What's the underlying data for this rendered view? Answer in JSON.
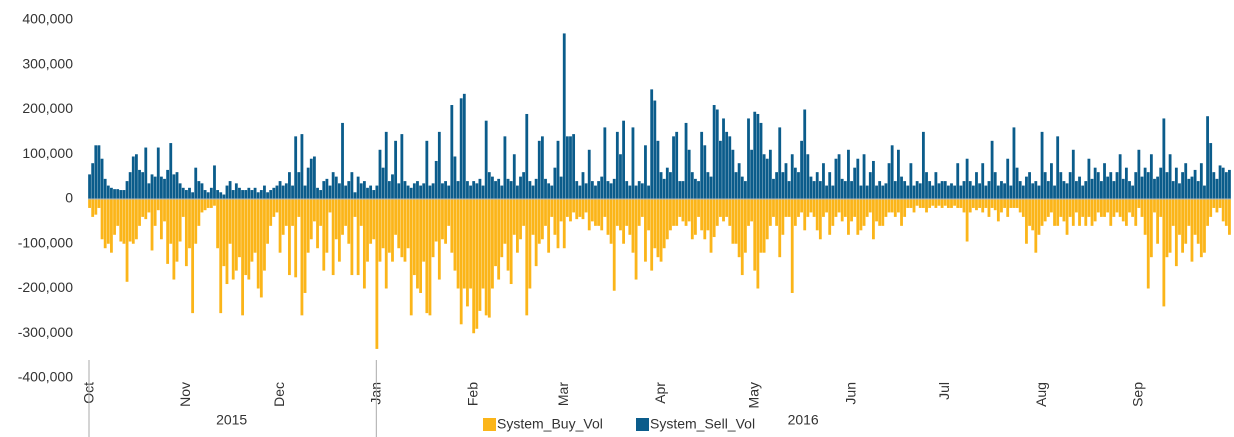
{
  "chart_data": {
    "type": "bar",
    "series": [
      {
        "name": "System_Buy_Vol",
        "color": "#fbb519",
        "values": [
          -20000,
          -40000,
          -35000,
          -20000,
          -90000,
          -110000,
          -100000,
          -120000,
          -80000,
          -60000,
          -95000,
          -100000,
          -185000,
          -95000,
          -100000,
          -90000,
          -60000,
          -40000,
          -45000,
          -30000,
          -115000,
          -60000,
          -25000,
          -90000,
          -50000,
          -145000,
          -100000,
          -180000,
          -140000,
          -95000,
          -40000,
          -150000,
          -110000,
          -255000,
          -100000,
          -60000,
          -30000,
          -25000,
          -20000,
          -20000,
          -15000,
          -110000,
          -255000,
          -150000,
          -190000,
          -100000,
          -180000,
          -160000,
          -130000,
          -260000,
          -170000,
          -180000,
          -140000,
          -120000,
          -200000,
          -220000,
          -160000,
          -100000,
          -60000,
          -40000,
          -30000,
          -120000,
          -80000,
          -60000,
          -170000,
          -60000,
          -175000,
          -40000,
          -260000,
          -210000,
          -120000,
          -90000,
          -50000,
          -110000,
          -60000,
          -160000,
          -120000,
          -30000,
          -170000,
          -90000,
          -140000,
          -80000,
          -60000,
          -100000,
          -170000,
          -40000,
          -170000,
          -60000,
          -200000,
          -140000,
          -100000,
          -90000,
          -335000,
          -140000,
          -110000,
          -200000,
          -120000,
          -140000,
          -80000,
          -110000,
          -130000,
          -140000,
          -110000,
          -260000,
          -170000,
          -200000,
          -210000,
          -140000,
          -255000,
          -260000,
          -130000,
          -95000,
          -180000,
          -90000,
          -100000,
          -60000,
          -120000,
          -160000,
          -200000,
          -280000,
          -200000,
          -240000,
          -200000,
          -300000,
          -290000,
          -250000,
          -200000,
          -260000,
          -265000,
          -200000,
          -150000,
          -180000,
          -130000,
          -100000,
          -160000,
          -190000,
          -80000,
          -120000,
          -90000,
          -60000,
          -260000,
          -200000,
          -80000,
          -150000,
          -100000,
          -90000,
          -60000,
          -120000,
          -40000,
          -80000,
          -110000,
          -50000,
          -110000,
          -40000,
          -50000,
          -30000,
          -45000,
          -40000,
          -45000,
          -30000,
          -70000,
          -50000,
          -60000,
          -60000,
          -70000,
          -40000,
          -80000,
          -100000,
          -205000,
          -60000,
          -70000,
          -100000,
          -60000,
          -80000,
          -120000,
          -180000,
          -60000,
          -40000,
          -140000,
          -70000,
          -160000,
          -110000,
          -130000,
          -140000,
          -110000,
          -90000,
          -70000,
          -60000,
          -60000,
          -40000,
          -50000,
          -60000,
          -50000,
          -90000,
          -80000,
          -40000,
          -70000,
          -90000,
          -70000,
          -120000,
          -85000,
          -60000,
          -40000,
          -50000,
          -40000,
          -60000,
          -100000,
          -100000,
          -130000,
          -170000,
          -120000,
          -60000,
          -50000,
          -160000,
          -200000,
          -120000,
          -120000,
          -90000,
          -60000,
          -40000,
          -60000,
          -130000,
          -80000,
          -40000,
          -40000,
          -210000,
          -60000,
          -40000,
          -30000,
          -70000,
          -40000,
          -30000,
          -40000,
          -70000,
          -90000,
          -40000,
          -30000,
          -80000,
          -60000,
          -40000,
          -30000,
          -50000,
          -40000,
          -80000,
          -50000,
          -40000,
          -80000,
          -70000,
          -60000,
          -40000,
          -30000,
          -90000,
          -50000,
          -60000,
          -60000,
          -40000,
          -30000,
          -30000,
          -40000,
          -30000,
          -60000,
          -40000,
          -20000,
          -20000,
          -30000,
          -15000,
          -20000,
          -20000,
          -30000,
          -20000,
          -15000,
          -20000,
          -15000,
          -20000,
          -15000,
          -20000,
          -20000,
          -15000,
          -20000,
          -20000,
          -30000,
          -95000,
          -30000,
          -20000,
          -25000,
          -20000,
          -30000,
          -20000,
          -40000,
          -20000,
          -25000,
          -50000,
          -30000,
          -20000,
          -40000,
          -20000,
          -20000,
          -20000,
          -30000,
          -40000,
          -100000,
          -60000,
          -70000,
          -120000,
          -80000,
          -60000,
          -50000,
          -40000,
          -30000,
          -60000,
          -60000,
          -40000,
          -50000,
          -80000,
          -40000,
          -60000,
          -30000,
          -60000,
          -40000,
          -60000,
          -40000,
          -60000,
          -50000,
          -30000,
          -40000,
          -40000,
          -30000,
          -60000,
          -40000,
          -30000,
          -40000,
          -50000,
          -60000,
          -30000,
          -40000,
          -60000,
          -20000,
          -40000,
          -80000,
          -200000,
          -130000,
          -30000,
          -100000,
          -40000,
          -240000,
          -130000,
          -120000,
          -60000,
          -150000,
          -80000,
          -120000,
          -100000,
          -60000,
          -140000,
          -80000,
          -100000,
          -130000,
          -120000,
          -60000,
          -40000,
          -20000,
          -30000,
          -20000,
          -50000,
          -60000,
          -80000
        ]
      },
      {
        "name": "System_Sell_Vol",
        "color": "#0b5c8b",
        "values": [
          55000,
          80000,
          120000,
          120000,
          90000,
          45000,
          30000,
          25000,
          22000,
          22000,
          20000,
          20000,
          40000,
          60000,
          95000,
          100000,
          65000,
          60000,
          115000,
          35000,
          55000,
          50000,
          115000,
          50000,
          45000,
          65000,
          125000,
          55000,
          60000,
          35000,
          25000,
          20000,
          25000,
          15000,
          70000,
          40000,
          35000,
          20000,
          15000,
          25000,
          75000,
          20000,
          15000,
          10000,
          30000,
          40000,
          20000,
          35000,
          25000,
          20000,
          20000,
          25000,
          20000,
          25000,
          15000,
          20000,
          30000,
          15000,
          20000,
          25000,
          30000,
          40000,
          30000,
          35000,
          60000,
          30000,
          140000,
          60000,
          145000,
          30000,
          70000,
          90000,
          95000,
          25000,
          20000,
          40000,
          45000,
          30000,
          60000,
          50000,
          35000,
          170000,
          30000,
          40000,
          60000,
          15000,
          50000,
          35000,
          40000,
          25000,
          30000,
          20000,
          30000,
          110000,
          70000,
          150000,
          40000,
          55000,
          130000,
          35000,
          145000,
          40000,
          30000,
          25000,
          35000,
          40000,
          30000,
          35000,
          130000,
          30000,
          35000,
          85000,
          150000,
          35000,
          40000,
          30000,
          210000,
          95000,
          40000,
          225000,
          235000,
          40000,
          30000,
          40000,
          35000,
          45000,
          30000,
          175000,
          60000,
          50000,
          40000,
          45000,
          30000,
          140000,
          45000,
          40000,
          100000,
          30000,
          50000,
          60000,
          190000,
          40000,
          30000,
          45000,
          130000,
          140000,
          45000,
          35000,
          30000,
          70000,
          130000,
          50000,
          370000,
          140000,
          140000,
          145000,
          40000,
          30000,
          60000,
          35000,
          110000,
          40000,
          30000,
          40000,
          50000,
          160000,
          40000,
          35000,
          45000,
          150000,
          100000,
          175000,
          40000,
          30000,
          160000,
          30000,
          40000,
          35000,
          120000,
          30000,
          245000,
          220000,
          130000,
          60000,
          45000,
          70000,
          60000,
          140000,
          150000,
          40000,
          40000,
          170000,
          110000,
          60000,
          45000,
          40000,
          150000,
          120000,
          60000,
          50000,
          210000,
          200000,
          130000,
          180000,
          150000,
          140000,
          110000,
          60000,
          80000,
          50000,
          40000,
          180000,
          110000,
          195000,
          190000,
          170000,
          100000,
          90000,
          110000,
          45000,
          60000,
          160000,
          60000,
          80000,
          40000,
          100000,
          70000,
          60000,
          130000,
          200000,
          100000,
          50000,
          40000,
          60000,
          40000,
          80000,
          30000,
          60000,
          30000,
          90000,
          100000,
          45000,
          40000,
          110000,
          40000,
          70000,
          90000,
          30000,
          100000,
          30000,
          60000,
          85000,
          30000,
          40000,
          30000,
          35000,
          80000,
          120000,
          40000,
          110000,
          50000,
          40000,
          30000,
          80000,
          30000,
          40000,
          35000,
          150000,
          60000,
          40000,
          30000,
          60000,
          35000,
          40000,
          40000,
          30000,
          35000,
          30000,
          80000,
          30000,
          40000,
          90000,
          40000,
          30000,
          60000,
          35000,
          80000,
          30000,
          40000,
          130000,
          60000,
          30000,
          40000,
          35000,
          90000,
          30000,
          160000,
          70000,
          40000,
          30000,
          50000,
          60000,
          35000,
          40000,
          30000,
          150000,
          60000,
          40000,
          80000,
          30000,
          140000,
          60000,
          40000,
          35000,
          60000,
          110000,
          40000,
          50000,
          30000,
          40000,
          90000,
          45000,
          70000,
          60000,
          40000,
          80000,
          50000,
          60000,
          40000,
          60000,
          100000,
          45000,
          70000,
          40000,
          30000,
          60000,
          110000,
          50000,
          70000,
          60000,
          100000,
          45000,
          50000,
          70000,
          180000,
          60000,
          100000,
          40000,
          70000,
          35000,
          60000,
          80000,
          45000,
          50000,
          65000,
          40000,
          80000,
          30000,
          185000,
          125000,
          60000,
          45000,
          75000,
          70000,
          60000,
          65000
        ]
      }
    ],
    "categories": [
      "Oct",
      null,
      null,
      null,
      null,
      null,
      null,
      null,
      null,
      null,
      null,
      null,
      null,
      null,
      null,
      null,
      null,
      null,
      null,
      null,
      null,
      null,
      null,
      null,
      null,
      null,
      null,
      null,
      null,
      null,
      null,
      "Nov",
      null,
      null,
      null,
      null,
      null,
      null,
      null,
      null,
      null,
      null,
      null,
      null,
      null,
      null,
      null,
      null,
      null,
      null,
      null,
      null,
      null,
      null,
      null,
      null,
      null,
      null,
      null,
      null,
      null,
      "Dec",
      null,
      null,
      null,
      null,
      null,
      null,
      null,
      null,
      null,
      null,
      null,
      null,
      null,
      null,
      null,
      null,
      null,
      null,
      null,
      null,
      null,
      null,
      null,
      null,
      null,
      null,
      null,
      null,
      null,
      null,
      "Jan",
      null,
      null,
      null,
      null,
      null,
      null,
      null,
      null,
      null,
      null,
      null,
      null,
      null,
      null,
      null,
      null,
      null,
      null,
      null,
      null,
      null,
      null,
      null,
      null,
      null,
      null,
      null,
      null,
      null,
      null,
      "Feb",
      null,
      null,
      null,
      null,
      null,
      null,
      null,
      null,
      null,
      null,
      null,
      null,
      null,
      null,
      null,
      null,
      null,
      null,
      null,
      null,
      null,
      null,
      null,
      null,
      null,
      null,
      null,
      null,
      "Mar",
      null,
      null,
      null,
      null,
      null,
      null,
      null,
      null,
      null,
      null,
      null,
      null,
      null,
      null,
      null,
      null,
      null,
      null,
      null,
      null,
      null,
      null,
      null,
      null,
      null,
      null,
      null,
      null,
      null,
      null,
      "Apr",
      null,
      null,
      null,
      null,
      null,
      null,
      null,
      null,
      null,
      null,
      null,
      null,
      null,
      null,
      null,
      null,
      null,
      null,
      null,
      null,
      null,
      null,
      null,
      null,
      null,
      null,
      null,
      null,
      null,
      "May",
      null,
      null,
      null,
      null,
      null,
      null,
      null,
      null,
      null,
      null,
      null,
      null,
      null,
      null,
      null,
      null,
      null,
      null,
      null,
      null,
      null,
      null,
      null,
      null,
      null,
      null,
      null,
      null,
      null,
      null,
      "Jun",
      null,
      null,
      null,
      null,
      null,
      null,
      null,
      null,
      null,
      null,
      null,
      null,
      null,
      null,
      null,
      null,
      null,
      null,
      null,
      null,
      null,
      null,
      null,
      null,
      null,
      null,
      null,
      null,
      null,
      "Jul",
      null,
      null,
      null,
      null,
      null,
      null,
      null,
      null,
      null,
      null,
      null,
      null,
      null,
      null,
      null,
      null,
      null,
      null,
      null,
      null,
      null,
      null,
      null,
      null,
      null,
      null,
      null,
      null,
      null,
      null,
      "Aug",
      null,
      null,
      null,
      null,
      null,
      null,
      null,
      null,
      null,
      null,
      null,
      null,
      null,
      null,
      null,
      null,
      null,
      null,
      null,
      null,
      null,
      null,
      null,
      null,
      null,
      null,
      null,
      null,
      null,
      null,
      "Sep",
      null,
      null,
      null,
      null,
      null,
      null,
      null,
      null,
      null,
      null,
      null,
      null,
      null,
      null,
      null,
      null,
      null,
      null,
      null,
      null,
      null,
      null,
      null,
      null,
      null,
      null,
      null,
      null,
      null
    ],
    "year_labels": [
      "2015",
      "2016"
    ],
    "ylim": [
      -400000,
      400000
    ],
    "yticks": [
      {
        "value": -400000,
        "label": "-400,000"
      },
      {
        "value": -300000,
        "label": "-300,000"
      },
      {
        "value": -200000,
        "label": "-200,000"
      },
      {
        "value": -100000,
        "label": "-100,000"
      },
      0,
      {
        "value": 100000,
        "label": "100,000"
      },
      {
        "value": 200000,
        "label": "200,000"
      },
      {
        "value": 300000,
        "label": "300,000"
      },
      {
        "value": 400000,
        "label": "400,000"
      }
    ],
    "grid": false,
    "legend": "bottom"
  }
}
